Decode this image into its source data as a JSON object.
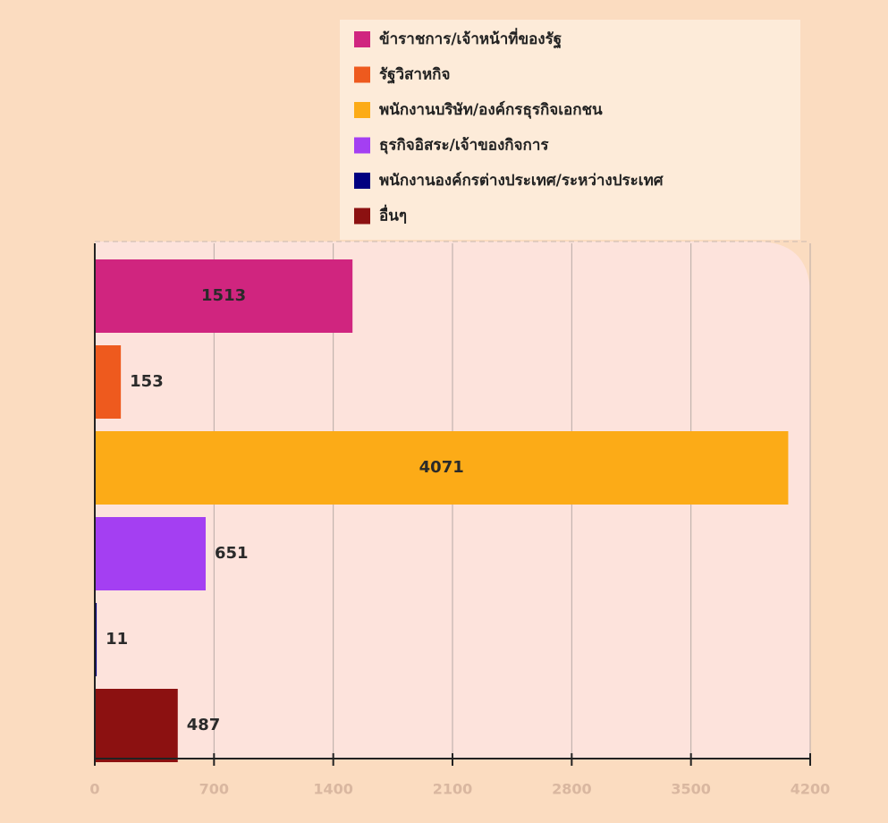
{
  "chart_data": {
    "type": "bar",
    "orientation": "horizontal",
    "categories": [
      "ข้าราชการ/เจ้าหน้าที่ของรัฐ",
      "รัฐวิสาหกิจ",
      "พนักงานบริษัท/องค์กรธุรกิจเอกชน",
      "ธุรกิจอิสระ/เจ้าของกิจการ",
      "พนักงานองค์กรต่างประเทศ/ระหว่างประเทศ",
      "อื่นๆ"
    ],
    "values": [
      1513,
      153,
      4071,
      651,
      11,
      487
    ],
    "colors": [
      "#d0257f",
      "#ee5a1e",
      "#fcab17",
      "#a43ff2",
      "#000080",
      "#8c1111"
    ],
    "xlim": [
      0,
      4200
    ],
    "xticks": [
      0,
      700,
      1400,
      2100,
      2800,
      3500,
      4200
    ],
    "grid": true,
    "legend": "top"
  }
}
